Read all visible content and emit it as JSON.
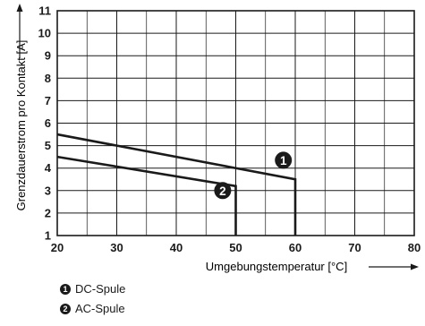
{
  "chart_data": {
    "type": "line",
    "xlabel": "Umgebungstemperatur [°C]",
    "ylabel": "Grenzdauerstrom pro Kontakt [A]",
    "xlim": [
      20,
      80
    ],
    "ylim": [
      1,
      11
    ],
    "xticks": [
      20,
      30,
      40,
      50,
      60,
      70,
      80
    ],
    "yticks": [
      1,
      2,
      3,
      4,
      5,
      6,
      7,
      8,
      9,
      10,
      11
    ],
    "grid": true,
    "series": [
      {
        "name": "DC-Spule",
        "marker": "1",
        "x": [
          20,
          60,
          60
        ],
        "y": [
          5.5,
          3.5,
          1
        ]
      },
      {
        "name": "AC-Spule",
        "marker": "2",
        "x": [
          20,
          50,
          50
        ],
        "y": [
          4.5,
          3.2,
          1
        ]
      }
    ],
    "legend": [
      {
        "marker": "1",
        "label": "DC-Spule"
      },
      {
        "marker": "2",
        "label": "AC-Spule"
      }
    ],
    "colors": {
      "line": "#1a1a1a",
      "grid": "#1a1a1a",
      "marker_text": "#ffffff"
    }
  }
}
